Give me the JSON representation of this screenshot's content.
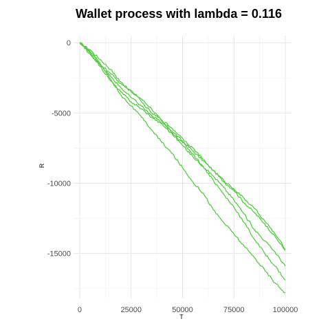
{
  "chart_data": {
    "type": "line",
    "title": "Wallet process with lambda =  0.116",
    "xlabel": "T",
    "ylabel": "R",
    "xlim": [
      -3000,
      103000
    ],
    "ylim": [
      -18200,
      500
    ],
    "x_ticks": [
      0,
      25000,
      50000,
      75000,
      100000
    ],
    "x_tick_labels": [
      "0",
      "25000",
      "50000",
      "75000",
      "100000"
    ],
    "y_ticks": [
      0,
      -5000,
      -10000,
      -15000
    ],
    "y_tick_labels": [
      "0",
      "-5000",
      "-10000",
      "-15000"
    ],
    "grid": true,
    "legend": "none",
    "line_color": "#55cc44",
    "series": [
      {
        "x": [
          0,
          5000,
          10000,
          15000,
          20000,
          25000,
          30000,
          35000,
          40000,
          45000,
          50000,
          55000,
          60000,
          65000,
          70000,
          75000,
          80000,
          85000,
          90000,
          95000,
          100000
        ],
        "values": [
          0,
          -500,
          -1200,
          -1900,
          -2800,
          -3500,
          -4000,
          -4700,
          -5600,
          -6300,
          -7000,
          -7700,
          -8400,
          -9100,
          -9900,
          -10500,
          -11400,
          -12100,
          -12900,
          -13800,
          -14800
        ]
      },
      {
        "x": [
          0,
          5000,
          10000,
          15000,
          20000,
          25000,
          30000,
          35000,
          40000,
          45000,
          50000,
          55000,
          60000,
          65000,
          70000,
          75000,
          80000,
          85000,
          90000,
          95000,
          100000
        ],
        "values": [
          0,
          -600,
          -1500,
          -2200,
          -2900,
          -3400,
          -4200,
          -5000,
          -5500,
          -6100,
          -6800,
          -7500,
          -8300,
          -9100,
          -9800,
          -10400,
          -11100,
          -11800,
          -12700,
          -13600,
          -14700
        ]
      },
      {
        "x": [
          0,
          5000,
          10000,
          15000,
          20000,
          25000,
          30000,
          35000,
          40000,
          45000,
          50000,
          55000,
          60000,
          65000,
          70000,
          75000,
          80000,
          85000,
          90000,
          95000,
          100000
        ],
        "values": [
          0,
          -700,
          -1700,
          -2700,
          -3500,
          -4200,
          -4700,
          -5300,
          -5800,
          -6500,
          -7300,
          -8100,
          -8800,
          -9500,
          -10300,
          -11200,
          -12200,
          -13300,
          -14100,
          -14900,
          -15900
        ]
      },
      {
        "x": [
          0,
          5000,
          10000,
          15000,
          20000,
          25000,
          30000,
          35000,
          40000,
          45000,
          50000,
          55000,
          60000,
          65000,
          70000,
          75000,
          80000,
          85000,
          90000,
          95000,
          100000
        ],
        "values": [
          0,
          -800,
          -1600,
          -2400,
          -3200,
          -3900,
          -4500,
          -5200,
          -5700,
          -6400,
          -7100,
          -7900,
          -8800,
          -9800,
          -10800,
          -11700,
          -12800,
          -14000,
          -15000,
          -15900,
          -16900
        ]
      },
      {
        "x": [
          0,
          5000,
          10000,
          15000,
          20000,
          25000,
          30000,
          35000,
          40000,
          45000,
          50000,
          55000,
          60000,
          65000,
          70000,
          75000,
          80000,
          85000,
          90000,
          95000,
          100000
        ],
        "values": [
          0,
          -700,
          -1500,
          -2600,
          -3700,
          -4500,
          -5300,
          -6200,
          -7100,
          -7900,
          -8900,
          -9900,
          -10700,
          -11900,
          -12800,
          -13600,
          -14500,
          -15300,
          -16200,
          -17100,
          -17800
        ]
      }
    ]
  }
}
